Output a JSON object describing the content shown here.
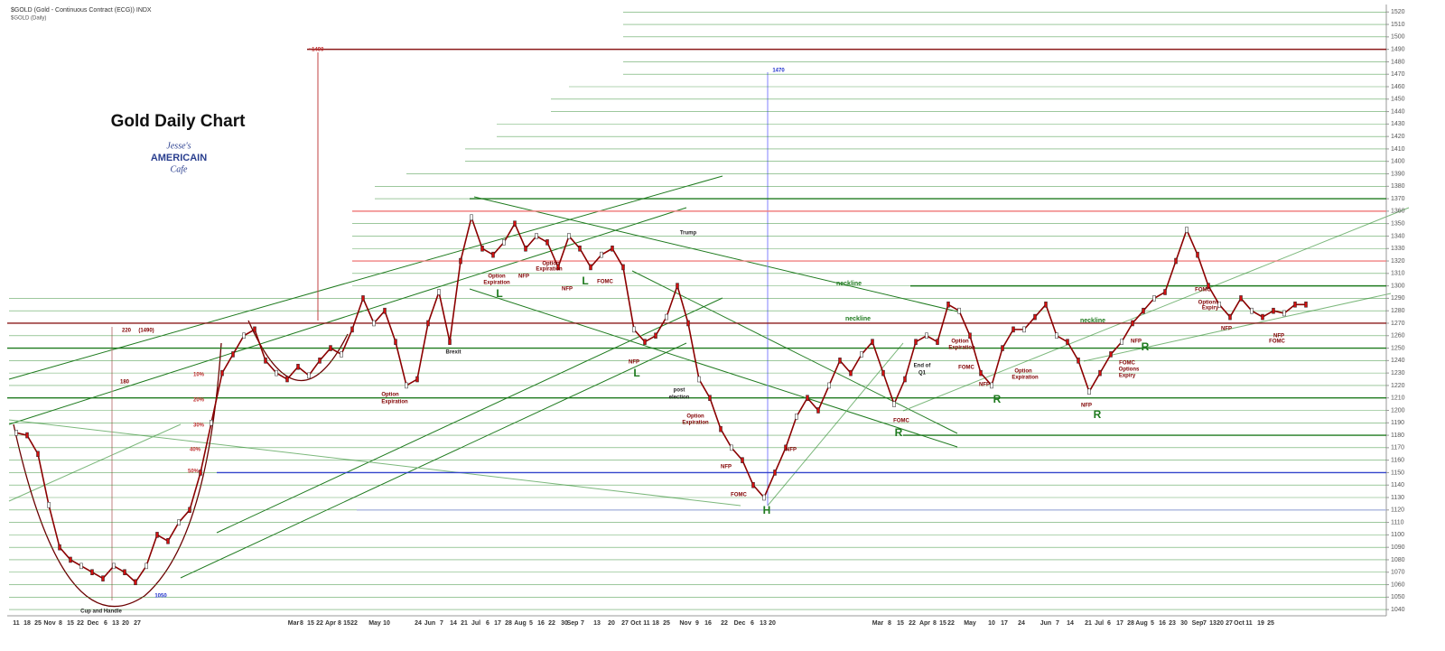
{
  "header": {
    "symbol": "$GOLD (Gold - Continuous Contract (ECG)) INDX",
    "period": "$GOLD (Daily)"
  },
  "logo": {
    "line1": "Jesse's",
    "line2": "AMERICAIN",
    "line3": "Cafe"
  },
  "chart_data": {
    "type": "line",
    "title": "Gold Daily Chart",
    "color": "#8b0000",
    "values": [
      1182,
      1180,
      1165,
      1124,
      1090,
      1080,
      1075,
      1070,
      1065,
      1075,
      1070,
      1062,
      1075,
      1100,
      1095,
      1110,
      1120,
      1150,
      1190,
      1230,
      1245,
      1260,
      1265,
      1240,
      1230,
      1225,
      1235,
      1228,
      1240,
      1250,
      1245,
      1265,
      1290,
      1270,
      1280,
      1255,
      1220,
      1225,
      1270,
      1295,
      1255,
      1320,
      1355,
      1330,
      1325,
      1335,
      1350,
      1330,
      1340,
      1335,
      1315,
      1340,
      1330,
      1315,
      1325,
      1330,
      1315,
      1265,
      1255,
      1260,
      1275,
      1300,
      1270,
      1225,
      1210,
      1185,
      1170,
      1160,
      1140,
      1130,
      1150,
      1170,
      1195,
      1210,
      1200,
      1220,
      1240,
      1230,
      1245,
      1255,
      1230,
      1205,
      1225,
      1255,
      1260,
      1255,
      1285,
      1280,
      1260,
      1230,
      1220,
      1250,
      1265,
      1265,
      1275,
      1285,
      1260,
      1255,
      1240,
      1215,
      1230,
      1245,
      1255,
      1270,
      1280,
      1290,
      1295,
      1320,
      1345,
      1325,
      1300,
      1285,
      1275,
      1290,
      1280,
      1275,
      1280,
      1278,
      1285,
      1285
    ],
    "x_labels": [
      "11",
      "18",
      "25",
      "Nov",
      "8",
      "15",
      "22",
      "Dec",
      "6",
      "13",
      "20",
      "27",
      "Mar",
      "8",
      "15",
      "22",
      "Apr",
      "8",
      "15",
      "22",
      "May",
      "10",
      "24",
      "Jun",
      "7",
      "14",
      "21",
      "Jul",
      "6",
      "17",
      "28",
      "Aug",
      "5",
      "16",
      "22",
      "30",
      "Sep",
      "7",
      "13",
      "20",
      "27",
      "Oct",
      "11",
      "18",
      "25",
      "Nov",
      "9",
      "16",
      "22",
      "Dec",
      "6",
      "13",
      "20",
      "Mar",
      "8",
      "15",
      "22",
      "Apr",
      "8",
      "15",
      "22",
      "May",
      "10",
      "17",
      "24",
      "Jun",
      "7",
      "14",
      "21",
      "Jul",
      "6",
      "17",
      "28",
      "Aug",
      "5",
      "16",
      "23",
      "30",
      "Sep",
      "7",
      "13",
      "20",
      "27",
      "Oct",
      "11",
      "19",
      "25"
    ],
    "ylim": [
      1035,
      1526
    ],
    "yticks": [
      1040,
      1050,
      1060,
      1070,
      1080,
      1090,
      1100,
      1110,
      1120,
      1130,
      1140,
      1150,
      1160,
      1170,
      1180,
      1190,
      1200,
      1210,
      1220,
      1230,
      1240,
      1250,
      1260,
      1270,
      1280,
      1290,
      1300,
      1310,
      1320,
      1330,
      1340,
      1350,
      1360,
      1370,
      1380,
      1390,
      1400,
      1410,
      1420,
      1430,
      1440,
      1450,
      1460,
      1470,
      1480,
      1490,
      1500,
      1510,
      1520
    ],
    "grid": true,
    "grid_color": "#2e8b2e",
    "levels": [
      {
        "value": 1490,
        "color": "#8b1a1a"
      },
      {
        "value": 1370,
        "color": "#1e7a1e"
      },
      {
        "value": 1360,
        "color": "#f08080"
      },
      {
        "value": 1320,
        "color": "#f08080"
      },
      {
        "value": 1300,
        "color": "#1e7a1e"
      },
      {
        "value": 1270,
        "color": "#8b1a1a"
      },
      {
        "value": 1250,
        "color": "#1e7a1e"
      },
      {
        "value": 1210,
        "color": "#1e7a1e"
      },
      {
        "value": 1180,
        "color": "#1e7a1e"
      },
      {
        "value": 1150,
        "color": "#3344cc"
      },
      {
        "value": 1120,
        "color": "#aab4dd"
      }
    ],
    "annotations": [
      "~1490",
      "1470",
      "Trump",
      "Brexit",
      "220",
      "(1490)",
      "180",
      "10%",
      "20%",
      "30%",
      "40%",
      "50%",
      "1050",
      "Cup and Handle",
      "Option",
      "Expiration",
      "Option",
      "Expiration",
      "NFP",
      "Option",
      "Expiration",
      "NFP",
      "FOMC",
      "L",
      "L",
      "L",
      "NFP",
      "post",
      "election",
      "Option",
      "Expiration",
      "NFP",
      "FOMC",
      "H",
      "NFP",
      "neckline",
      "neckline",
      "neckline",
      "FOMC",
      "R",
      "End of",
      "Q1",
      "Option",
      "Expiration",
      "FOMC",
      "NFP",
      "R",
      "Option",
      "Expiration",
      "NFP",
      "R",
      "NFP",
      "R",
      "FOMC",
      "Options",
      "Expiry",
      "FOMC",
      "Options",
      "Expiry",
      "NFP",
      "NFP",
      "FOMC"
    ]
  }
}
